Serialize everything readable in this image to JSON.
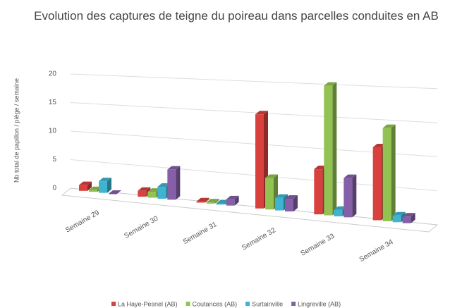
{
  "chart_data": {
    "type": "bar3d",
    "title": "Evolution des captures de teigne du poireau dans parcelles conduites en AB",
    "y_label": "Nb total de papillon / piège / semaine",
    "categories": [
      "Semaine 29",
      "Semaine 30",
      "Semaine 31",
      "Semaine 32",
      "Semaine 33",
      "Semaine 34"
    ],
    "series": [
      {
        "name": "La Haye-Pesnel (AB)",
        "color": "#d9413e",
        "values": [
          1,
          1,
          0.2,
          15,
          7,
          11
        ]
      },
      {
        "name": "Coutances (AB)",
        "color": "#92c352",
        "values": [
          0.3,
          1,
          0.2,
          5,
          20,
          14
        ]
      },
      {
        "name": "Surtainville",
        "color": "#3fb3d0",
        "values": [
          2,
          2,
          0.2,
          2,
          1,
          1
        ]
      },
      {
        "name": "Lingreville (AB)",
        "color": "#8560a8",
        "values": [
          0,
          5,
          1,
          2,
          6,
          1
        ]
      }
    ],
    "ylim": [
      0,
      20
    ],
    "yticks": [
      0,
      5,
      10,
      15,
      20
    ],
    "grid": true,
    "legend": "bottom"
  }
}
